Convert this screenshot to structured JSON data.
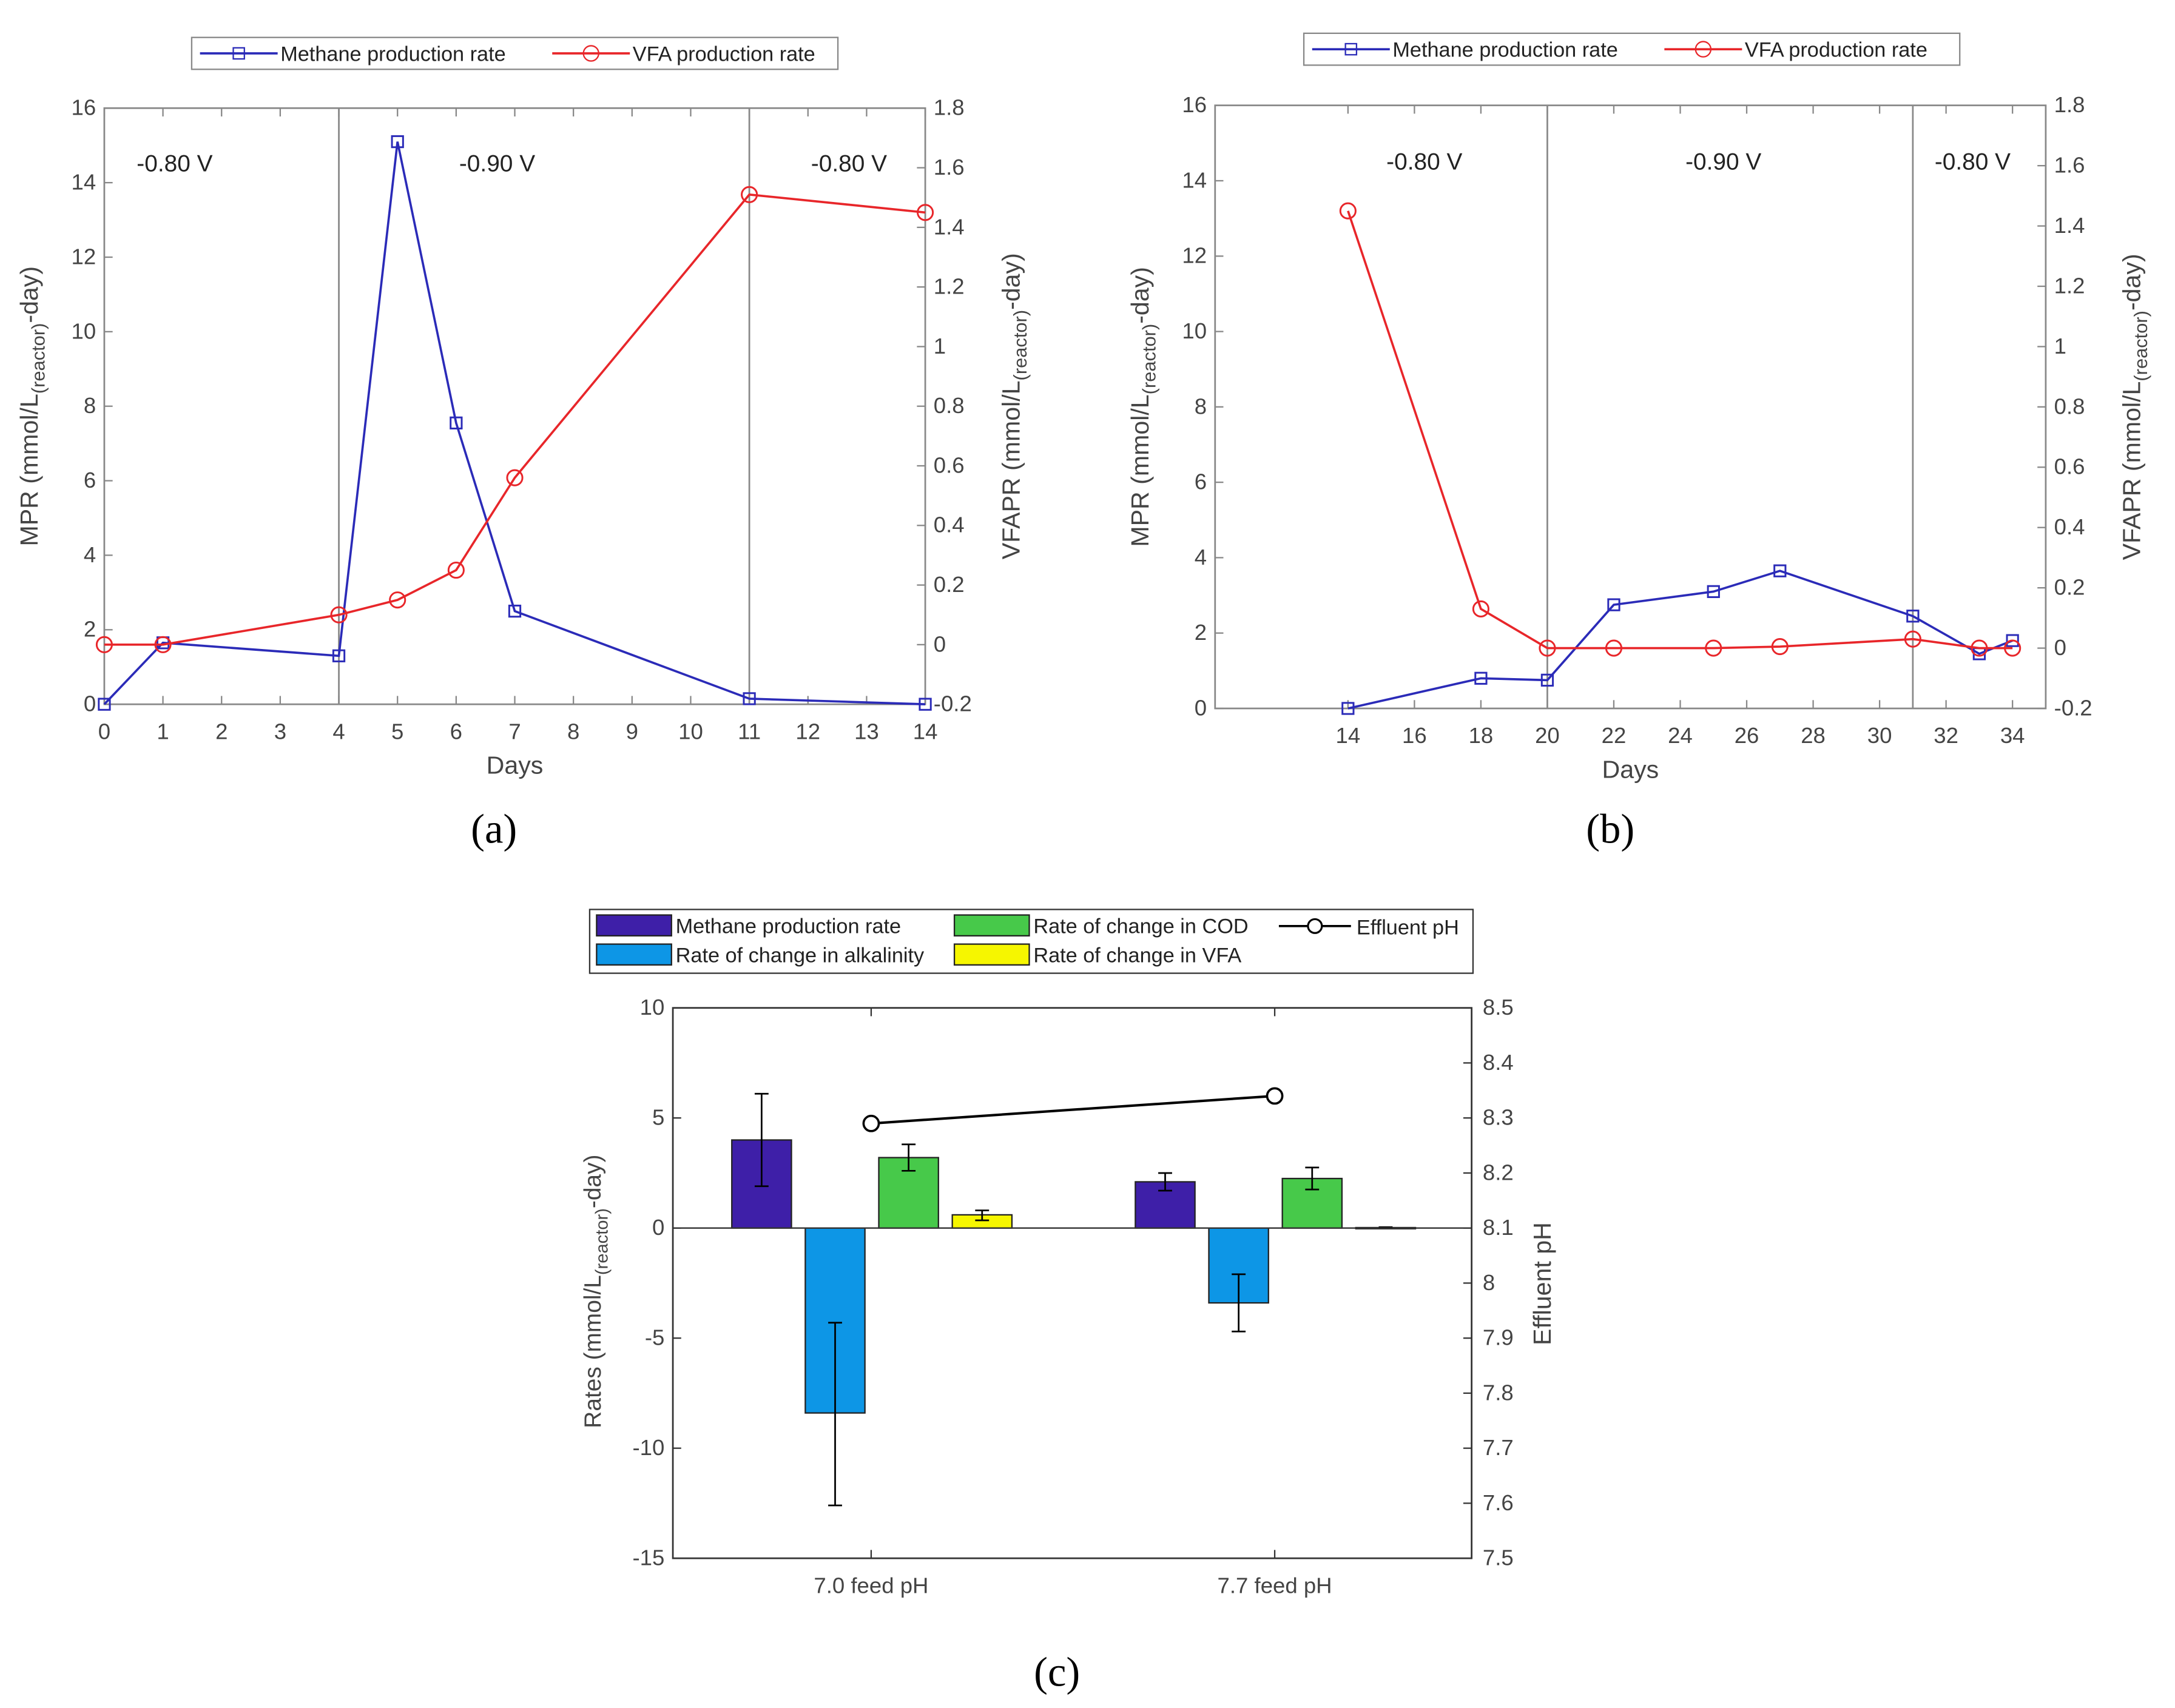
{
  "chart_data": [
    {
      "type": "line",
      "panel_label": "(a)",
      "xlabel": "Days",
      "ylabel": "MPR (mmol/L(reactor)-day)",
      "y2label": "VFAPR (mmol/L(reactor)-day)",
      "ylabel_main": "MPR (mmol/L",
      "ylabel_sub": "(reactor)",
      "ylabel_end": "-day)",
      "y2label_main": "VFAPR (mmol/L",
      "y2label_sub": "(reactor)",
      "y2label_end": "-day)",
      "xlim": [
        0,
        14
      ],
      "ylim": [
        0,
        16
      ],
      "y2lim": [
        -0.2,
        1.8
      ],
      "xticks": [
        0,
        1,
        2,
        3,
        4,
        5,
        6,
        7,
        8,
        9,
        10,
        11,
        12,
        13,
        14
      ],
      "yticks": [
        0,
        2,
        4,
        6,
        8,
        10,
        12,
        14,
        16
      ],
      "y2ticks": [
        "-0.2",
        "0",
        "0.2",
        "0.4",
        "0.6",
        "0.8",
        "1",
        "1.2",
        "1.4",
        "1.6",
        "1.8"
      ],
      "vlines": [
        4,
        11
      ],
      "annotations": [
        {
          "text": "-0.80 V",
          "x": 1.2
        },
        {
          "text": "-0.90 V",
          "x": 6.7
        },
        {
          "text": "-0.80 V",
          "x": 12.7
        }
      ],
      "legend": "top",
      "series": [
        {
          "name": "Methane production rate",
          "axis": "left",
          "color": "#2b2bb8",
          "marker": "square",
          "x": [
            0,
            1,
            4,
            5,
            6,
            7,
            11,
            14
          ],
          "y": [
            0,
            1.65,
            1.3,
            15.1,
            7.55,
            2.5,
            0.15,
            0
          ]
        },
        {
          "name": "VFA production rate",
          "axis": "right",
          "color": "#e8262a",
          "marker": "circle",
          "x": [
            0,
            1,
            4,
            5,
            6,
            7,
            11,
            14
          ],
          "y": [
            0,
            0,
            0.1,
            0.15,
            0.25,
            0.56,
            1.51,
            1.45
          ]
        }
      ]
    },
    {
      "type": "line",
      "panel_label": "(b)",
      "xlabel": "Days",
      "ylabel": "MPR (mmol/L(reactor)-day)",
      "y2label": "VFAPR (mmol/L(reactor)-day)",
      "ylabel_main": "MPR (mmol/L",
      "ylabel_sub": "(reactor)",
      "ylabel_end": "-day)",
      "y2label_main": "VFAPR (mmol/L",
      "y2label_sub": "(reactor)",
      "y2label_end": "-day)",
      "xlim": [
        10,
        35
      ],
      "ylim": [
        0,
        16
      ],
      "y2lim": [
        -0.2,
        1.8
      ],
      "xticks": [
        14,
        16,
        18,
        20,
        22,
        24,
        26,
        28,
        30,
        32,
        34
      ],
      "yticks": [
        0,
        2,
        4,
        6,
        8,
        10,
        12,
        14,
        16
      ],
      "y2ticks": [
        "-0.2",
        "0",
        "0.2",
        "0.4",
        "0.6",
        "0.8",
        "1",
        "1.2",
        "1.4",
        "1.6",
        "1.8"
      ],
      "vlines": [
        20,
        31
      ],
      "annotations": [
        {
          "text": "-0.80 V",
          "x": 16.3
        },
        {
          "text": "-0.90 V",
          "x": 25.3
        },
        {
          "text": "-0.80 V",
          "x": 32.8
        }
      ],
      "legend": "top",
      "series": [
        {
          "name": "Methane production rate",
          "axis": "left",
          "color": "#2b2bb8",
          "marker": "square",
          "x": [
            14,
            18,
            20,
            22,
            25,
            27,
            31,
            33,
            34
          ],
          "y": [
            0,
            0.8,
            0.75,
            2.75,
            3.1,
            3.65,
            2.45,
            1.45,
            1.8
          ]
        },
        {
          "name": "VFA production rate",
          "axis": "right",
          "color": "#e8262a",
          "marker": "circle",
          "x": [
            14,
            18,
            20,
            22,
            25,
            27,
            31,
            33,
            34
          ],
          "y": [
            1.45,
            0.13,
            0,
            0,
            0,
            0.005,
            0.03,
            0,
            0
          ]
        }
      ]
    },
    {
      "type": "bar",
      "panel_label": "(c)",
      "ylabel": "Rates (mmol/L(reactor)-day)",
      "ylabel_main": "Rates (mmol/L",
      "ylabel_sub": "(reactor)",
      "ylabel_end": "-day)",
      "y2label": "Effluent pH",
      "categories": [
        "7.0 feed pH",
        "7.7 feed pH"
      ],
      "ylim": [
        -15,
        10
      ],
      "y2lim": [
        7.5,
        8.5
      ],
      "yticks": [
        "-15",
        "-10",
        "-5",
        "0",
        "5",
        "10"
      ],
      "y2ticks": [
        "7.5",
        "7.6",
        "7.7",
        "7.8",
        "7.9",
        "8",
        "8.1",
        "8.2",
        "8.3",
        "8.4",
        "8.5"
      ],
      "legend": "top",
      "series": [
        {
          "name": "Methane production rate",
          "color": "#3e1fa8",
          "values": [
            4.0,
            2.1
          ],
          "err_low": [
            1.9,
            1.7
          ],
          "err_high": [
            6.1,
            2.5
          ]
        },
        {
          "name": "Rate of change in alkalinity",
          "color": "#0d96e6",
          "values": [
            -8.4,
            -3.4
          ],
          "err_low": [
            -12.6,
            -4.7
          ],
          "err_high": [
            -4.3,
            -2.1
          ]
        },
        {
          "name": "Rate of change in COD",
          "color": "#47c94a",
          "values": [
            3.2,
            2.25
          ],
          "err_low": [
            2.6,
            1.75
          ],
          "err_high": [
            3.8,
            2.75
          ]
        },
        {
          "name": "Rate of change in VFA",
          "color": "#f6f600",
          "values": [
            0.6,
            0.02
          ],
          "err_low": [
            0.35,
            0.0
          ],
          "err_high": [
            0.8,
            0.04
          ]
        }
      ],
      "line_series": {
        "name": "Effluent pH",
        "axis": "right",
        "color": "#000000",
        "values": [
          8.29,
          8.34
        ]
      }
    }
  ]
}
